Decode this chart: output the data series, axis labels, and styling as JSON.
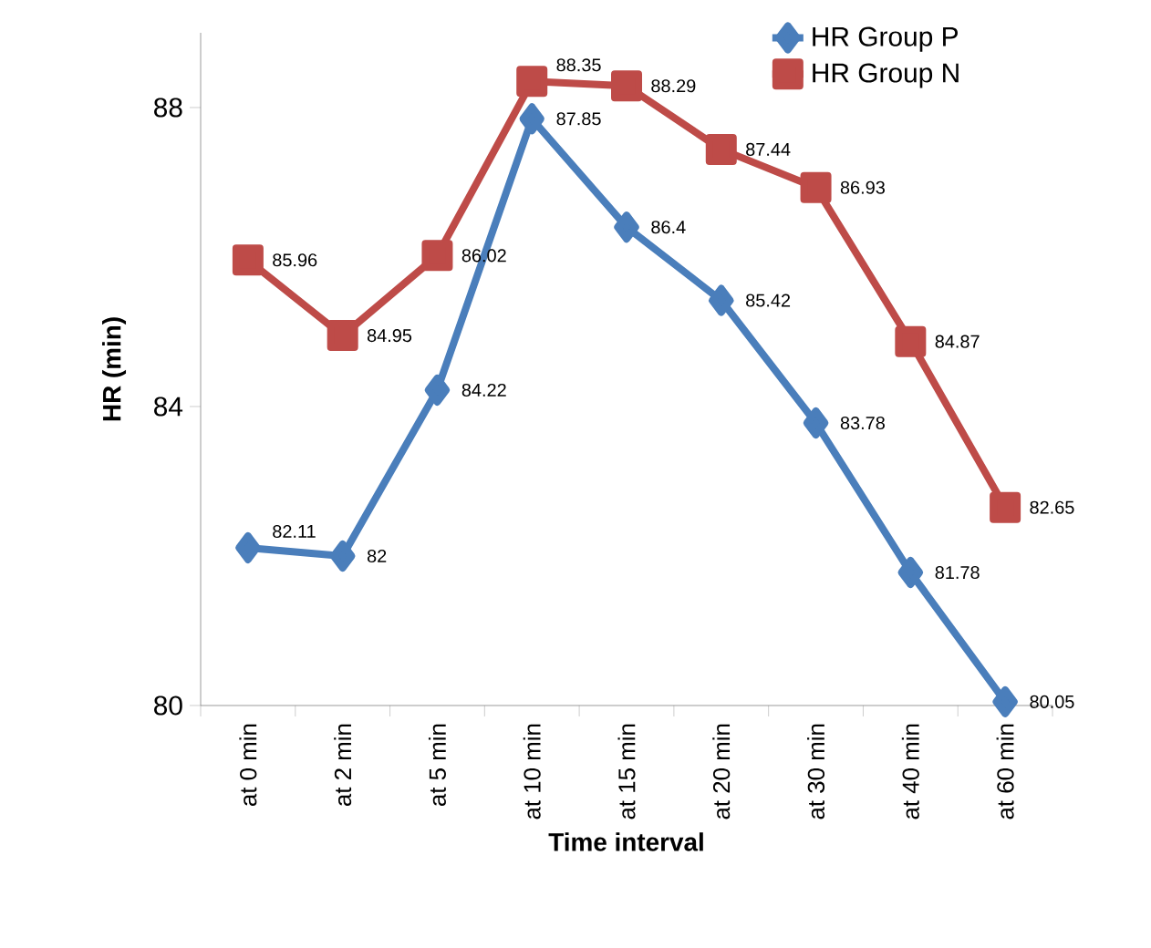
{
  "chart_data": {
    "type": "line",
    "xlabel": "Time interval",
    "ylabel": "HR (min)",
    "categories": [
      "at 0 min",
      "at 2 min",
      "at 5 min",
      "at 10 min",
      "at 15 min",
      "at 20 min",
      "at 30 min",
      "at 40 min",
      "at 60 min"
    ],
    "series": [
      {
        "name": "HR Group P",
        "color": "#4a7ebb",
        "marker": "diamond",
        "values": [
          82.11,
          82,
          84.22,
          87.85,
          86.4,
          85.42,
          83.78,
          81.78,
          80.05
        ]
      },
      {
        "name": "HR Group N",
        "color": "#be4b48",
        "marker": "square",
        "values": [
          85.96,
          84.95,
          86.02,
          88.35,
          88.29,
          87.44,
          86.93,
          84.87,
          82.65
        ]
      }
    ],
    "ylim": [
      80,
      89
    ],
    "yticks": [
      80,
      84,
      88
    ],
    "grid": false,
    "legend": "top right",
    "data_labels": true,
    "line_style": "solid"
  }
}
